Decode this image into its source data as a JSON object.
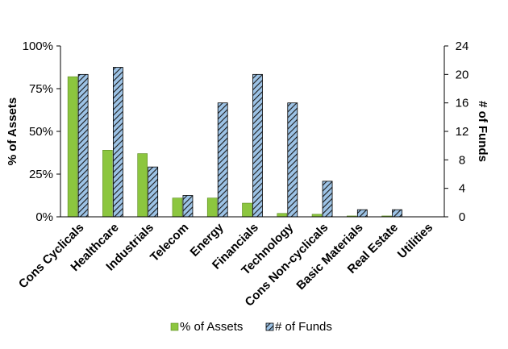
{
  "chart_data": {
    "type": "bar",
    "categories": [
      "Cons Cyclicals",
      "Healthcare",
      "Industrials",
      "Telecom",
      "Energy",
      "Financials",
      "Technology",
      "Cons Non-cyclicals",
      "Basic Materials",
      "Real Estate",
      "Utilities"
    ],
    "series": [
      {
        "name": "% of Assets",
        "axis": "left",
        "values": [
          82,
          39,
          37,
          11,
          11,
          8,
          2,
          1.5,
          0.5,
          0.5,
          0
        ]
      },
      {
        "name": "# of Funds",
        "axis": "right",
        "values": [
          20,
          21,
          7,
          3,
          16,
          20,
          16,
          5,
          1,
          1,
          0
        ]
      }
    ],
    "y_left": {
      "label": "% of Assets",
      "ylim": [
        0,
        100
      ],
      "ticks": [
        "0%",
        "25%",
        "50%",
        "75%",
        "100%"
      ]
    },
    "y_right": {
      "label": "# of Funds",
      "ylim": [
        0,
        24
      ],
      "ticks": [
        "0",
        "4",
        "8",
        "12",
        "16",
        "20",
        "24"
      ]
    },
    "legend_position": "bottom",
    "grid": false,
    "colors": {
      "assets": "#8cc63f",
      "funds_fill": "#9dc3e6",
      "funds_hatch": "#1a1a1a"
    }
  }
}
